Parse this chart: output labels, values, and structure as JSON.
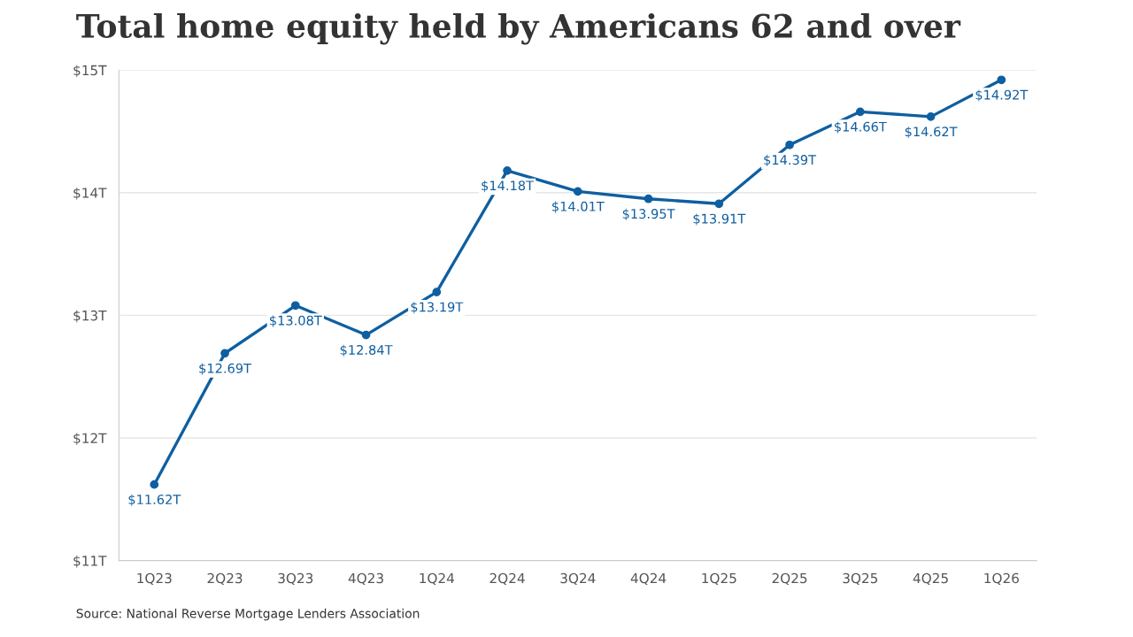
{
  "chart_data": {
    "type": "line",
    "title": "Total home equity held by Americans 62 and over",
    "categories": [
      "1Q23",
      "2Q23",
      "3Q23",
      "4Q23",
      "1Q24",
      "2Q24",
      "3Q24",
      "4Q24",
      "1Q25",
      "2Q25",
      "3Q25",
      "4Q25",
      "1Q26"
    ],
    "series": [
      {
        "color": "#0f5fa0",
        "values": [
          11.62,
          12.69,
          13.08,
          12.84,
          13.19,
          14.18,
          14.01,
          13.95,
          13.91,
          14.39,
          14.66,
          14.62,
          14.92
        ],
        "value_labels": [
          "$11.62T",
          "$12.69T",
          "$13.08T",
          "$12.84T",
          "$13.19T",
          "$14.18T",
          "$14.01T",
          "$13.95T",
          "$13.91T",
          "$14.39T",
          "$14.66T",
          "$14.62T",
          "$14.92T"
        ]
      }
    ],
    "ylim": [
      11,
      15
    ],
    "yticks": [
      {
        "value": 11,
        "label": "$11T"
      },
      {
        "value": 12,
        "label": "$12T"
      },
      {
        "value": 13,
        "label": "$13T"
      },
      {
        "value": 14,
        "label": "$14T"
      },
      {
        "value": 15,
        "label": "$15T"
      }
    ],
    "grid": "y",
    "marker": "circle",
    "line_style": "solid",
    "legend": false,
    "annotations": [
      "Source: National Reverse Mortgage Lenders Association"
    ]
  }
}
